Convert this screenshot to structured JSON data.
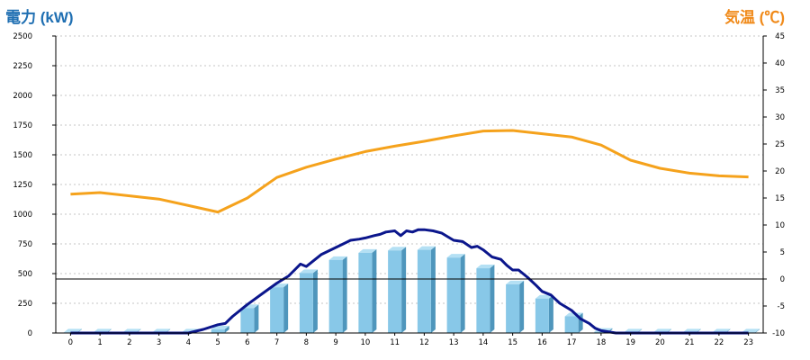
{
  "chart_data": {
    "type": "bar",
    "left_axis_label": "電力 (kW)",
    "right_axis_label": "気温 (℃)",
    "x": [
      0,
      1,
      2,
      3,
      4,
      5,
      6,
      7,
      8,
      9,
      10,
      11,
      12,
      13,
      14,
      15,
      16,
      17,
      18,
      19,
      20,
      21,
      22,
      23
    ],
    "x_tick_labels": [
      "0",
      "1",
      "2",
      "3",
      "4",
      "5",
      "6",
      "7",
      "8",
      "9",
      "10",
      "11",
      "12",
      "13",
      "14",
      "15",
      "16",
      "17",
      "18",
      "19",
      "20",
      "21",
      "22",
      "23"
    ],
    "y_left_ticks": [
      "0",
      "250",
      "500",
      "750",
      "1000",
      "1250",
      "1500",
      "1750",
      "2000",
      "2250",
      "2500"
    ],
    "y_right_ticks": [
      "-10",
      "-5",
      "0",
      "5",
      "10",
      "15",
      "20",
      "25",
      "30",
      "35",
      "40",
      "45"
    ],
    "ylim_left": [
      0,
      2500
    ],
    "ylim_right": [
      -10,
      45
    ],
    "grid": "horizontal dotted",
    "colors": {
      "bar": "#88c8e8",
      "bar_side": "#4f96bc",
      "bar_top": "#b4e0f4",
      "temp_line": "#f5a21c",
      "power_line": "#0b168c",
      "left_title": "#1f6fb2",
      "right_title": "#f08a1a"
    },
    "series": [
      {
        "kind": "bar",
        "axis": "left",
        "values": [
          5,
          5,
          5,
          5,
          5,
          30,
          210,
          385,
          505,
          615,
          675,
          695,
          700,
          635,
          545,
          410,
          290,
          140,
          10,
          5,
          5,
          5,
          5,
          5
        ]
      },
      {
        "kind": "line",
        "axis": "right",
        "values": [
          15.7,
          16.0,
          15.4,
          14.8,
          13.6,
          12.4,
          15.0,
          18.8,
          20.7,
          22.2,
          23.6,
          24.6,
          25.5,
          26.5,
          27.4,
          27.5,
          26.9,
          26.3,
          24.8,
          22.0,
          20.5,
          19.6,
          19.1,
          18.9
        ]
      },
      {
        "kind": "line",
        "axis": "left",
        "x": [
          0,
          1,
          2,
          3,
          4,
          4.5,
          5,
          5.25,
          5.5,
          6,
          6.5,
          7,
          7.4,
          7.6,
          7.8,
          8,
          8.5,
          9,
          9.5,
          9.8,
          10,
          10.3,
          10.5,
          10.7,
          11,
          11.2,
          11.4,
          11.6,
          11.8,
          12,
          12.3,
          12.6,
          12.8,
          13,
          13.3,
          13.6,
          13.8,
          14,
          14.3,
          14.6,
          14.8,
          15,
          15.2,
          15.5,
          15.8,
          16,
          16.3,
          16.6,
          17,
          17.3,
          17.6,
          17.8,
          18,
          18.5,
          19,
          20,
          21,
          22,
          23
        ],
        "values": [
          0,
          0,
          0,
          0,
          0,
          30,
          70,
          80,
          140,
          240,
          330,
          420,
          480,
          530,
          580,
          560,
          660,
          720,
          780,
          790,
          800,
          820,
          830,
          850,
          860,
          820,
          860,
          850,
          870,
          870,
          860,
          840,
          810,
          780,
          770,
          720,
          730,
          700,
          640,
          620,
          570,
          530,
          530,
          470,
          400,
          350,
          320,
          250,
          190,
          120,
          80,
          40,
          20,
          0,
          0,
          0,
          0,
          0,
          0
        ]
      }
    ]
  }
}
